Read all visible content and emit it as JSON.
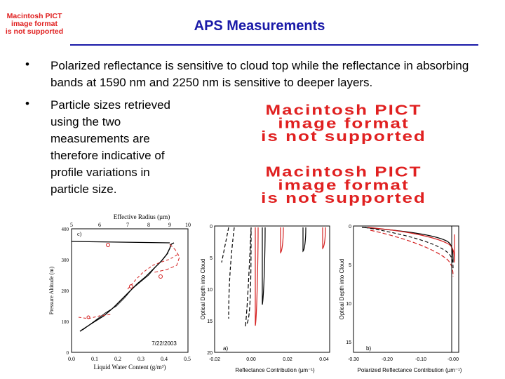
{
  "slide": {
    "title": "APS Measurements",
    "title_color": "#1a1aa8",
    "pict_placeholder": [
      "Macintosh PICT",
      "image format",
      "is not supported"
    ],
    "bullets": [
      {
        "marker": "•",
        "text": "Polarized reflectance is sensitive to cloud top while the reflectance in absorbing bands at 1590 nm and 2250 nm is sensitive to deeper layers."
      },
      {
        "marker": "•",
        "text": "Particle sizes retrieved using the two measurements are therefore indicative of profile variations in particle size."
      }
    ]
  },
  "figures": {
    "profile_plot": {
      "top_axis_label": "Effective Radius (µm)",
      "top_ticks": [
        "5",
        "6",
        "7",
        "8",
        "9",
        "10"
      ],
      "bottom_axis_label": "Liquid Water Content (g/m³)",
      "bottom_ticks": [
        "0.0",
        "0.1",
        "0.2",
        "0.3",
        "0.4",
        "0.5"
      ],
      "y_axis_label": "Pressure Altitude (m)",
      "y_ticks": [
        "0",
        "100",
        "200",
        "300",
        "400"
      ],
      "panel_label": "c)",
      "date": "7/22/2003"
    },
    "reflectance_plot": {
      "x_axis_label": "Reflectance Contribution (µm⁻¹)",
      "x_ticks": [
        "-0.02",
        "0.00",
        "0.02",
        "0.04"
      ],
      "y_axis_label": "Optical Depth into Cloud",
      "y_ticks": [
        "0",
        "5",
        "10",
        "15",
        "20"
      ],
      "panel_label": "a)"
    },
    "polarized_plot": {
      "x_axis_label": "Polarized Reflectance Contribution (µm⁻¹)",
      "x_ticks": [
        "-0.30",
        "-0.20",
        "-0.10",
        "-0.00"
      ],
      "y_axis_label": "Optical Depth into Cloud",
      "y_ticks": [
        "0",
        "5",
        "10",
        "15"
      ],
      "panel_label": "b)"
    }
  },
  "colors": {
    "red_series": "#d42020",
    "black_series": "#000000",
    "placeholder_red": "#e02020"
  }
}
